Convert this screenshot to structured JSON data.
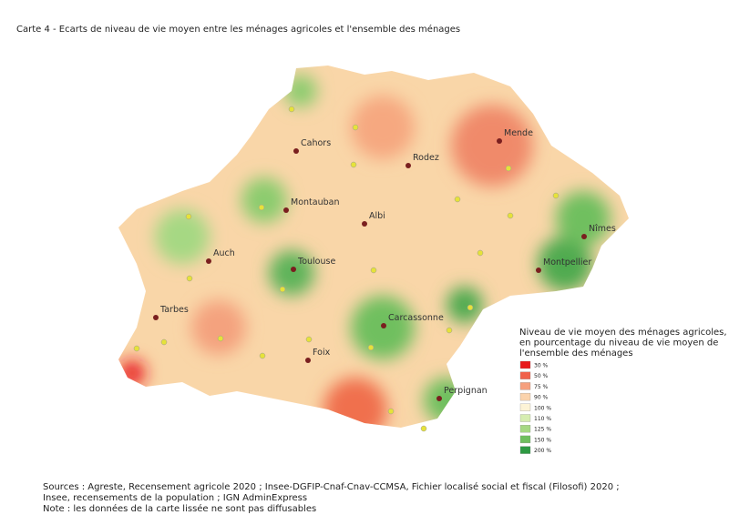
{
  "title": "Carte 4 - Ecarts de niveau de vie moyen entre les ménages agricoles et l'ensemble des ménages",
  "cities": [
    "Cahors",
    "Rodez",
    "Mende",
    "Montauban",
    "Albi",
    "Nîmes",
    "Auch",
    "Toulouse",
    "Montpellier",
    "Tarbes",
    "Carcassonne",
    "Foix",
    "Perpignan"
  ],
  "legend": {
    "title": [
      "Niveau de vie moyen des ménages agricoles,",
      "en pourcentage du niveau de vie moyen de",
      "l'ensemble des ménages"
    ],
    "items": [
      {
        "label": "30 %",
        "color": "#e8191b"
      },
      {
        "label": "50 %",
        "color": "#f0604a"
      },
      {
        "label": "75 %",
        "color": "#f6a07e"
      },
      {
        "label": "90 %",
        "color": "#fbd3ac"
      },
      {
        "label": "100 %",
        "color": "#fdf3d6"
      },
      {
        "label": "110 %",
        "color": "#d6edb0"
      },
      {
        "label": "125 %",
        "color": "#a6d883"
      },
      {
        "label": "150 %",
        "color": "#6fbf5e"
      },
      {
        "label": "200 %",
        "color": "#2e9a43"
      }
    ]
  },
  "sources": [
    "Sources : Agreste, Recensement agricole 2020 ; Insee-DGFIP-Cnaf-Cnav-CCMSA, Fichier localisé social et fiscal (Filosofi) 2020 ;",
    "Insee, recensements de la population ; IGN AdminExpress",
    "Note : les données de la carte lissée ne sont pas diffusables"
  ]
}
